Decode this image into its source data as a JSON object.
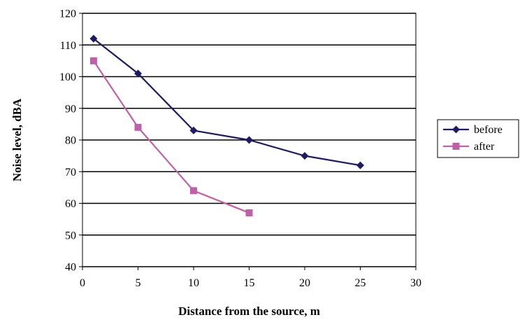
{
  "chart_data": {
    "type": "line",
    "title": "",
    "xlabel": "Distance from the source, m",
    "ylabel": "Noise level, dBA",
    "xlim": [
      0,
      30
    ],
    "ylim": [
      40,
      120
    ],
    "x_ticks": [
      "0",
      "5",
      "10",
      "15",
      "20",
      "25",
      "30"
    ],
    "y_ticks": [
      "40",
      "50",
      "60",
      "70",
      "80",
      "90",
      "100",
      "110",
      "120"
    ],
    "grid": "horizontal",
    "legend_position": "right",
    "series": [
      {
        "name": "before",
        "color": "#1f1a66",
        "marker": "diamond",
        "points": [
          {
            "x": 1,
            "y": 112
          },
          {
            "x": 5,
            "y": 101
          },
          {
            "x": 10,
            "y": 83
          },
          {
            "x": 15,
            "y": 80
          },
          {
            "x": 20,
            "y": 75
          },
          {
            "x": 25,
            "y": 72
          }
        ]
      },
      {
        "name": "after",
        "color": "#c060a8",
        "marker": "square",
        "points": [
          {
            "x": 1,
            "y": 105
          },
          {
            "x": 5,
            "y": 84
          },
          {
            "x": 10,
            "y": 64
          },
          {
            "x": 15,
            "y": 57
          }
        ]
      }
    ]
  }
}
